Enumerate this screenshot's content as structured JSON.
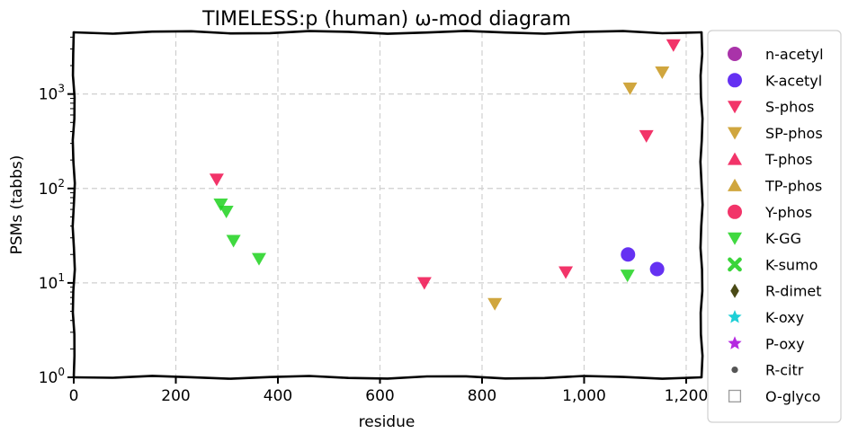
{
  "chart_data": {
    "type": "scatter",
    "title": "TIMELESS:p (human) ω-mod diagram",
    "xlabel": "residue",
    "ylabel": "PSMs (tabbs)",
    "xlim": [
      0,
      1230
    ],
    "ylim": [
      1,
      4500
    ],
    "yscale": "log",
    "grid": true,
    "legend_position": "right, outside plot",
    "x_ticks": [
      {
        "value": 0,
        "label": "0"
      },
      {
        "value": 200,
        "label": "200"
      },
      {
        "value": 400,
        "label": "400"
      },
      {
        "value": 600,
        "label": "600"
      },
      {
        "value": 800,
        "label": "800"
      },
      {
        "value": 1000,
        "label": "1,000"
      },
      {
        "value": 1200,
        "label": "1,200"
      }
    ],
    "y_ticks": [
      {
        "value": 1,
        "base": "10",
        "exp": "0"
      },
      {
        "value": 10,
        "base": "10",
        "exp": "1"
      },
      {
        "value": 100,
        "base": "10",
        "exp": "2"
      },
      {
        "value": 1000,
        "base": "10",
        "exp": "3"
      }
    ],
    "series": [
      {
        "name": "n-acetyl",
        "marker": "circle",
        "color": "#9a0f9a",
        "x": [],
        "y": []
      },
      {
        "name": "K-acetyl",
        "marker": "circle",
        "color": "#4a0df0",
        "x": [
          1086,
          1143
        ],
        "y": [
          20,
          14
        ]
      },
      {
        "name": "S-phos",
        "marker": "triangle-down",
        "color": "#f0114f",
        "x": [
          280,
          687,
          964,
          1122,
          1175
        ],
        "y": [
          125,
          10,
          13,
          360,
          3300
        ]
      },
      {
        "name": "SP-phos",
        "marker": "triangle-down",
        "color": "#c8961c",
        "x": [
          825,
          1090,
          1153
        ],
        "y": [
          6,
          1150,
          1700
        ]
      },
      {
        "name": "T-phos",
        "marker": "triangle-up",
        "color": "#f0114f",
        "x": [],
        "y": []
      },
      {
        "name": "TP-phos",
        "marker": "triangle-up",
        "color": "#c8961c",
        "x": [],
        "y": []
      },
      {
        "name": "Y-phos",
        "marker": "circle",
        "color": "#f0114f",
        "x": [],
        "y": []
      },
      {
        "name": "K-GG",
        "marker": "triangle-down",
        "color": "#1ed21e",
        "x": [
          288,
          299,
          313,
          363,
          1085
        ],
        "y": [
          68,
          57,
          28,
          18,
          12
        ]
      },
      {
        "name": "K-sumo",
        "marker": "x",
        "color": "#3bd43b",
        "x": [],
        "y": []
      },
      {
        "name": "R-dimet",
        "marker": "diamond",
        "color": "#4a4a16",
        "x": [],
        "y": []
      },
      {
        "name": "K-oxy",
        "marker": "star",
        "color": "#1ecfd6",
        "x": [],
        "y": []
      },
      {
        "name": "P-oxy",
        "marker": "star",
        "color": "#b428e0",
        "x": [],
        "y": []
      },
      {
        "name": "R-citr",
        "marker": "dot",
        "color": "#555555",
        "x": [],
        "y": []
      },
      {
        "name": "O-glyco",
        "marker": "square-open",
        "color": "#9a9a9a",
        "x": [],
        "y": []
      }
    ]
  }
}
